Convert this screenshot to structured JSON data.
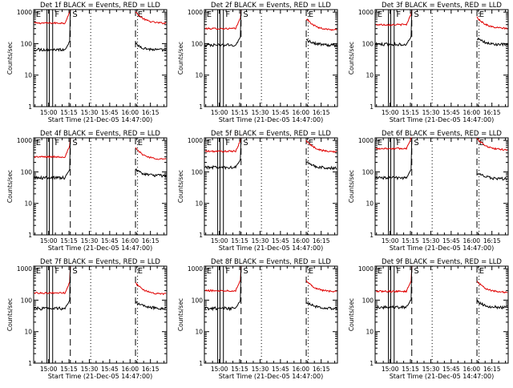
{
  "chart_data": {
    "type": "line",
    "xlabel": "Start Time (21-Dec-05 14:47:00)",
    "ylabel": "Counts/sec",
    "x_ticks": [
      "15:00",
      "15:15",
      "15:30",
      "15:45",
      "16:00",
      "16:15"
    ],
    "x_tick_minutes": [
      0,
      15,
      30,
      45,
      60,
      75
    ],
    "x_range_minutes": [
      -11,
      87
    ],
    "y_scale": "log",
    "ylim": [
      1,
      1200
    ],
    "y_ticks": [
      "1",
      "10",
      "100",
      "1000"
    ],
    "y_tick_values": [
      1,
      10,
      100,
      1000
    ],
    "series_colors": {
      "events": "#000000",
      "lld": "#e00000"
    },
    "markers": {
      "solid_minutes": [
        -1.2,
        0.5,
        3.0
      ],
      "dashed_minutes": [
        16,
        64
      ],
      "dotted_minutes": [
        31,
        65.5
      ],
      "letters": [
        "E",
        "F",
        "S",
        "E"
      ],
      "letter_minutes": [
        -10,
        4,
        17,
        65
      ]
    },
    "panels": [
      {
        "title": "Det 1f BLACK = Events, RED = LLD",
        "events_level": 65,
        "lld_level": 450,
        "events_after": 62,
        "lld_after": 440
      },
      {
        "title": "Det 2f BLACK = Events, RED = LLD",
        "events_level": 90,
        "lld_level": 300,
        "events_after": 88,
        "lld_after": 270
      },
      {
        "title": "Det 3f BLACK = Events, RED = LLD",
        "events_level": 95,
        "lld_level": 400,
        "events_after": 92,
        "lld_after": 300
      },
      {
        "title": "Det 4f BLACK = Events, RED = LLD",
        "events_level": 65,
        "lld_level": 300,
        "events_after": 75,
        "lld_after": 250
      },
      {
        "title": "Det 5f BLACK = Events, RED = LLD",
        "events_level": 140,
        "lld_level": 450,
        "events_after": 130,
        "lld_after": 430
      },
      {
        "title": "Det 6f BLACK = Events, RED = LLD",
        "events_level": 65,
        "lld_level": 550,
        "events_after": 60,
        "lld_after": 500
      },
      {
        "title": "Det 7f BLACK = Events, RED = LLD",
        "events_level": 55,
        "lld_level": 170,
        "events_after": 55,
        "lld_after": 155
      },
      {
        "title": "Det 8f BLACK = Events, RED = LLD",
        "events_level": 55,
        "lld_level": 200,
        "events_after": 55,
        "lld_after": 185
      },
      {
        "title": "Det 9f BLACK = Events, RED = LLD",
        "events_level": 60,
        "lld_level": 190,
        "events_after": 58,
        "lld_after": 175
      }
    ]
  }
}
